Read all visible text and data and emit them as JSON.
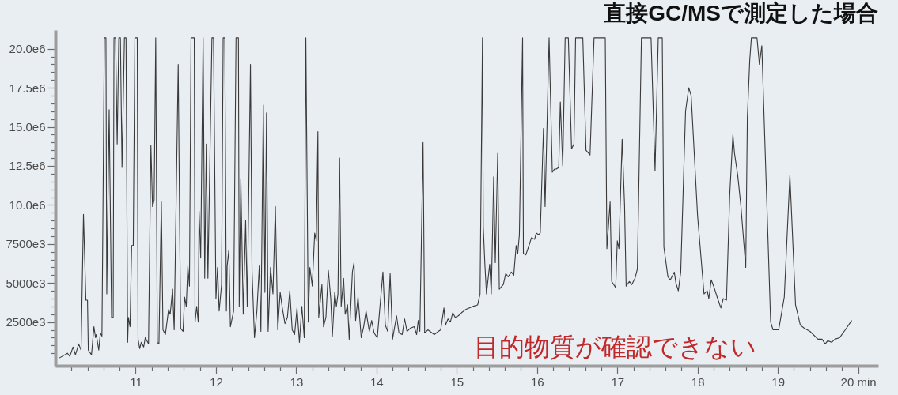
{
  "chart_data": {
    "type": "line",
    "title": "直接GC/MSで測定した場合",
    "annotations": [
      "目的物質が確認できない"
    ],
    "color": "#3a3a3a",
    "xlim": [
      10.0,
      20.25
    ],
    "ylim": [
      -300000,
      21200000
    ],
    "xticks": [
      {
        "value": 10.2,
        "label": null
      },
      {
        "value": 10.4,
        "label": null
      },
      {
        "value": 10.6,
        "label": null
      },
      {
        "value": 10.8,
        "label": null
      },
      11,
      {
        "value": 11.2,
        "label": null
      },
      {
        "value": 11.4,
        "label": null
      },
      {
        "value": 11.6,
        "label": null
      },
      {
        "value": 11.8,
        "label": null
      },
      12,
      {
        "value": 12.2,
        "label": null
      },
      {
        "value": 12.4,
        "label": null
      },
      {
        "value": 12.6,
        "label": null
      },
      {
        "value": 12.8,
        "label": null
      },
      13,
      {
        "value": 13.2,
        "label": null
      },
      {
        "value": 13.4,
        "label": null
      },
      {
        "value": 13.6,
        "label": null
      },
      {
        "value": 13.8,
        "label": null
      },
      14,
      {
        "value": 14.2,
        "label": null
      },
      {
        "value": 14.4,
        "label": null
      },
      {
        "value": 14.6,
        "label": null
      },
      {
        "value": 14.8,
        "label": null
      },
      15,
      {
        "value": 15.2,
        "label": null
      },
      {
        "value": 15.4,
        "label": null
      },
      {
        "value": 15.6,
        "label": null
      },
      {
        "value": 15.8,
        "label": null
      },
      16,
      {
        "value": 16.2,
        "label": null
      },
      {
        "value": 16.4,
        "label": null
      },
      {
        "value": 16.6,
        "label": null
      },
      {
        "value": 16.8,
        "label": null
      },
      17,
      {
        "value": 17.2,
        "label": null
      },
      {
        "value": 17.4,
        "label": null
      },
      {
        "value": 17.6,
        "label": null
      },
      {
        "value": 17.8,
        "label": null
      },
      18,
      {
        "value": 18.2,
        "label": null
      },
      {
        "value": 18.4,
        "label": null
      },
      {
        "value": 18.6,
        "label": null
      },
      {
        "value": 18.8,
        "label": null
      },
      19,
      {
        "value": 19.2,
        "label": null
      },
      {
        "value": 19.4,
        "label": null
      },
      {
        "value": 19.6,
        "label": null
      },
      {
        "value": 19.8,
        "label": null
      },
      {
        "value": 20,
        "label": "20 min"
      }
    ],
    "yticks": [
      {
        "value": 500000,
        "label": null
      },
      {
        "value": 1000000,
        "label": null
      },
      {
        "value": 1500000,
        "label": null
      },
      {
        "value": 2000000,
        "label": null
      },
      {
        "value": 2500000,
        "label": "2500e3"
      },
      {
        "value": 3000000,
        "label": null
      },
      {
        "value": 3500000,
        "label": null
      },
      {
        "value": 4000000,
        "label": null
      },
      {
        "value": 4500000,
        "label": null
      },
      {
        "value": 5000000,
        "label": "5000e3"
      },
      {
        "value": 5500000,
        "label": null
      },
      {
        "value": 6000000,
        "label": null
      },
      {
        "value": 6500000,
        "label": null
      },
      {
        "value": 7000000,
        "label": null
      },
      {
        "value": 7500000,
        "label": "7500e3"
      },
      {
        "value": 8000000,
        "label": null
      },
      {
        "value": 8500000,
        "label": null
      },
      {
        "value": 9000000,
        "label": null
      },
      {
        "value": 9500000,
        "label": null
      },
      {
        "value": 10000000,
        "label": "10.0e6"
      },
      {
        "value": 10500000,
        "label": null
      },
      {
        "value": 11000000,
        "label": null
      },
      {
        "value": 11500000,
        "label": null
      },
      {
        "value": 12000000,
        "label": null
      },
      {
        "value": 12500000,
        "label": "12.5e6"
      },
      {
        "value": 13000000,
        "label": null
      },
      {
        "value": 13500000,
        "label": null
      },
      {
        "value": 14000000,
        "label": null
      },
      {
        "value": 14500000,
        "label": null
      },
      {
        "value": 15000000,
        "label": "15.0e6"
      },
      {
        "value": 15500000,
        "label": null
      },
      {
        "value": 16000000,
        "label": null
      },
      {
        "value": 16500000,
        "label": null
      },
      {
        "value": 17000000,
        "label": null
      },
      {
        "value": 17500000,
        "label": "17.5e6"
      },
      {
        "value": 18000000,
        "label": null
      },
      {
        "value": 18500000,
        "label": null
      },
      {
        "value": 19000000,
        "label": null
      },
      {
        "value": 19500000,
        "label": null
      },
      {
        "value": 20000000,
        "label": "20.0e6"
      }
    ],
    "x": [
      10.05,
      10.15,
      10.18,
      10.22,
      10.25,
      10.29,
      10.32,
      10.35,
      10.38,
      10.4,
      10.41,
      10.45,
      10.48,
      10.5,
      10.51,
      10.54,
      10.56,
      10.58,
      10.61,
      10.63,
      10.64,
      10.67,
      10.7,
      10.72,
      10.73,
      10.75,
      10.77,
      10.79,
      10.81,
      10.83,
      10.86,
      10.88,
      10.9,
      10.91,
      10.93,
      10.95,
      10.97,
      10.99,
      11.02,
      11.03,
      11.05,
      11.07,
      11.1,
      11.12,
      11.16,
      11.19,
      11.21,
      11.23,
      11.25,
      11.27,
      11.29,
      11.32,
      11.34,
      11.37,
      11.41,
      11.43,
      11.46,
      11.48,
      11.53,
      11.56,
      11.59,
      11.61,
      11.63,
      11.65,
      11.67,
      11.69,
      11.73,
      11.74,
      11.76,
      11.78,
      11.79,
      11.81,
      11.84,
      11.86,
      11.88,
      11.9,
      11.95,
      11.97,
      12.0,
      12.02,
      12.04,
      12.07,
      12.09,
      12.11,
      12.13,
      12.14,
      12.16,
      12.18,
      12.22,
      12.25,
      12.28,
      12.29,
      12.31,
      12.34,
      12.37,
      12.39,
      12.43,
      12.45,
      12.48,
      12.51,
      12.54,
      12.56,
      12.59,
      12.61,
      12.63,
      12.65,
      12.68,
      12.71,
      12.74,
      12.77,
      12.8,
      12.83,
      12.86,
      12.89,
      12.92,
      12.95,
      12.98,
      13.01,
      13.04,
      13.07,
      13.1,
      13.12,
      13.15,
      13.17,
      13.2,
      13.23,
      13.25,
      13.27,
      13.28,
      13.32,
      13.34,
      13.37,
      13.4,
      13.43,
      13.45,
      13.48,
      13.5,
      13.52,
      13.54,
      13.56,
      13.59,
      13.61,
      13.64,
      13.66,
      13.7,
      13.72,
      13.74,
      13.77,
      13.81,
      13.84,
      13.87,
      13.91,
      13.94,
      13.97,
      14.01,
      14.08,
      14.11,
      14.14,
      14.17,
      14.2,
      14.25,
      14.28,
      14.32,
      14.35,
      14.38,
      14.42,
      14.47,
      14.5,
      14.52,
      14.54,
      14.58,
      14.6,
      14.64,
      14.72,
      14.77,
      14.8,
      14.84,
      14.86,
      14.89,
      14.92,
      14.95,
      14.98,
      15.02,
      15.06,
      15.11,
      15.2,
      15.26,
      15.29,
      15.32,
      15.33,
      15.35,
      15.37,
      15.41,
      15.43,
      15.46,
      15.48,
      15.51,
      15.53,
      15.58,
      15.61,
      15.64,
      15.68,
      15.71,
      15.74,
      15.76,
      15.78,
      15.82,
      15.83,
      15.86,
      15.9,
      15.93,
      15.97,
      15.99,
      16.02,
      16.04,
      16.08,
      16.1,
      16.15,
      16.19,
      16.22,
      16.24,
      16.27,
      16.29,
      16.32,
      16.35,
      16.39,
      16.43,
      16.46,
      16.48,
      16.57,
      16.61,
      16.66,
      16.71,
      16.85,
      16.87,
      16.91,
      16.93,
      16.98,
      16.99,
      17.0,
      17.02,
      17.06,
      17.09,
      17.11,
      17.15,
      17.18,
      17.22,
      17.25,
      17.3,
      17.42,
      17.47,
      17.51,
      17.56,
      17.58,
      17.63,
      17.66,
      17.71,
      17.73,
      17.76,
      17.79,
      17.85,
      17.89,
      17.92,
      18.0,
      18.08,
      18.12,
      18.14,
      18.17,
      18.2,
      18.25,
      18.29,
      18.32,
      18.36,
      18.4,
      18.44,
      18.46,
      18.5,
      18.54,
      18.6,
      18.62,
      18.65,
      18.67,
      18.74,
      18.77,
      18.8,
      18.91,
      18.94,
      19.01,
      19.08,
      19.15,
      19.22,
      19.28,
      19.33,
      19.4,
      19.5,
      19.55,
      19.59,
      19.62,
      19.67,
      19.71,
      19.77,
      19.84,
      19.92
    ],
    "values": [
      200000,
      500000,
      300000,
      900000,
      400000,
      1100000,
      700000,
      9400000,
      3900000,
      3900000,
      700000,
      400000,
      2200000,
      1500000,
      1700000,
      700000,
      1800000,
      1600000,
      20700000,
      20700000,
      4300000,
      16100000,
      2800000,
      2800000,
      20700000,
      20700000,
      13900000,
      20700000,
      20700000,
      12400000,
      20700000,
      20700000,
      1200000,
      2800000,
      2200000,
      7400000,
      7400000,
      20700000,
      20700000,
      1400000,
      800000,
      1200000,
      900000,
      1500000,
      1100000,
      13800000,
      9900000,
      10300000,
      20700000,
      1200000,
      1100000,
      10200000,
      2000000,
      1700000,
      3300000,
      3000000,
      4600000,
      2000000,
      19000000,
      2100000,
      1900000,
      4100000,
      3500000,
      6100000,
      4800000,
      20700000,
      20700000,
      2500000,
      3500000,
      2500000,
      9600000,
      6600000,
      20700000,
      5300000,
      13900000,
      5300000,
      20700000,
      20700000,
      4000000,
      6000000,
      3200000,
      4900000,
      20700000,
      20700000,
      3200000,
      6100000,
      7100000,
      2200000,
      3200000,
      20700000,
      20700000,
      3500000,
      11700000,
      3000000,
      9000000,
      3500000,
      19000000,
      5700000,
      1500000,
      3200000,
      6100000,
      1900000,
      16400000,
      4400000,
      15900000,
      1900000,
      6000000,
      4300000,
      9900000,
      2000000,
      4400000,
      3300000,
      2400000,
      2800000,
      4500000,
      2000000,
      1700000,
      3400000,
      1200000,
      3500000,
      1500000,
      20700000,
      2500000,
      6000000,
      4800000,
      8200000,
      7700000,
      14700000,
      2800000,
      4900000,
      2200000,
      2800000,
      5800000,
      4000000,
      1600000,
      4400000,
      3500000,
      4300000,
      13000000,
      3500000,
      5300000,
      3000000,
      3600000,
      1400000,
      5700000,
      6300000,
      2600000,
      4100000,
      1500000,
      2200000,
      3200000,
      1900000,
      2600000,
      1800000,
      1500000,
      5700000,
      2300000,
      1900000,
      5600000,
      1400000,
      2900000,
      1800000,
      1700000,
      2700000,
      1900000,
      2100000,
      2200000,
      1700000,
      2600000,
      1900000,
      14000000,
      1800000,
      2000000,
      1700000,
      1900000,
      2000000,
      3400000,
      2300000,
      2700000,
      2500000,
      3100000,
      2800000,
      2900000,
      3100000,
      3300000,
      3500000,
      3600000,
      4300000,
      20700000,
      8600000,
      6200000,
      4300000,
      6200000,
      4300000,
      11800000,
      6300000,
      13300000,
      4600000,
      4900000,
      5600000,
      5400000,
      5700000,
      5500000,
      7400000,
      6900000,
      8100000,
      20700000,
      6900000,
      6800000,
      7400000,
      7900000,
      7800000,
      8200000,
      8100000,
      8200000,
      14900000,
      9900000,
      20700000,
      12100000,
      12300000,
      12300000,
      12400000,
      16600000,
      12500000,
      20700000,
      20700000,
      13600000,
      13900000,
      20700000,
      20700000,
      13500000,
      13200000,
      20700000,
      20700000,
      7200000,
      10200000,
      5100000,
      4700000,
      6300000,
      7700000,
      7200000,
      14200000,
      10000000,
      4800000,
      5100000,
      4900000,
      5300000,
      5900000,
      20700000,
      20700000,
      12200000,
      20700000,
      20700000,
      7300000,
      5400000,
      5200000,
      5700000,
      5000000,
      4500000,
      5700000,
      16000000,
      17500000,
      17000000,
      9300000,
      4300000,
      4500000,
      4000000,
      5200000,
      4800000,
      4000000,
      3400000,
      4000000,
      3900000,
      10600000,
      14500000,
      13300000,
      11900000,
      9900000,
      6000000,
      15600000,
      19300000,
      20700000,
      20700000,
      19000000,
      20200000,
      2500000,
      2000000,
      2000000,
      4100000,
      11900000,
      3600000,
      2300000,
      2100000,
      1900000,
      1400000,
      1400000,
      1100000,
      1300000,
      1200000,
      1400000,
      1500000,
      2000000,
      2600000
    ]
  }
}
